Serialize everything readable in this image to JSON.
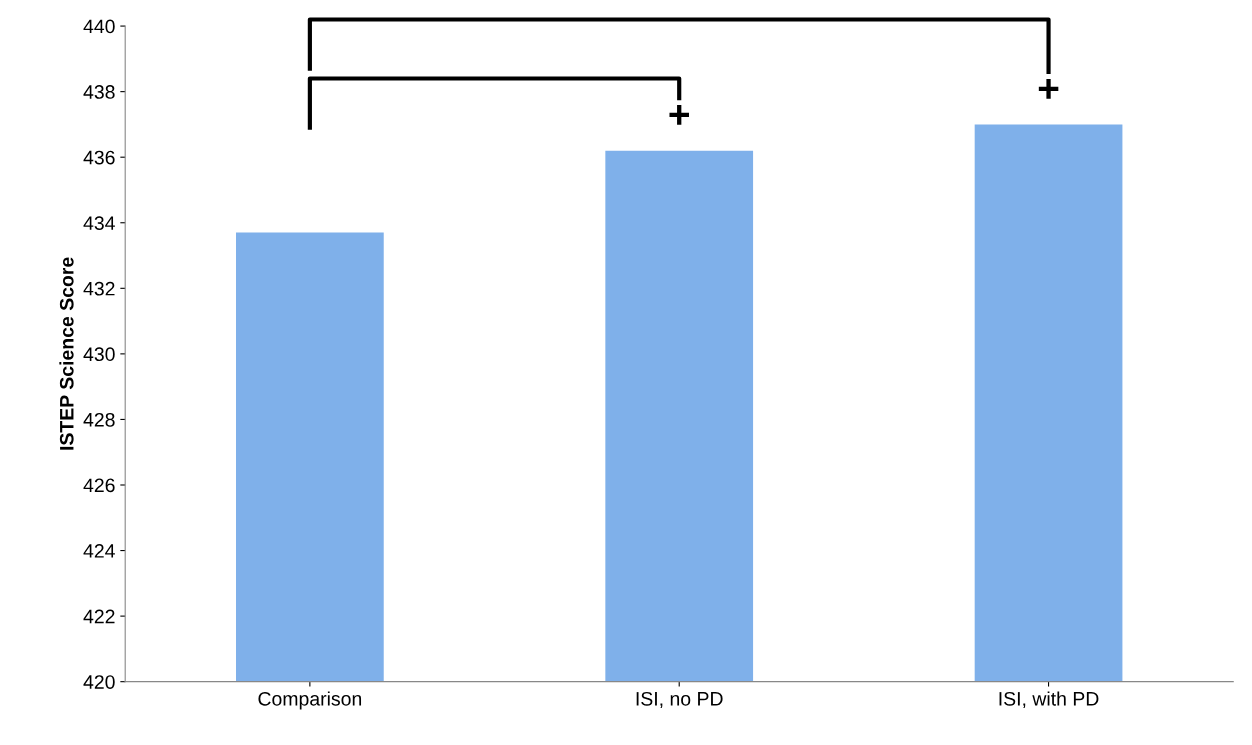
{
  "chart_data": {
    "type": "bar",
    "ylabel": "ISTEP Science Score",
    "categories": [
      "Comparison",
      "ISI, no PD",
      "ISI, with PD"
    ],
    "values": [
      433.7,
      436.2,
      437.0
    ],
    "color": "#7fb0ea",
    "ylim": [
      420,
      440
    ],
    "yticks": [
      420,
      422,
      424,
      426,
      428,
      430,
      432,
      434,
      436,
      438,
      440
    ],
    "grid": false,
    "annotations": [
      "+",
      "+"
    ]
  }
}
